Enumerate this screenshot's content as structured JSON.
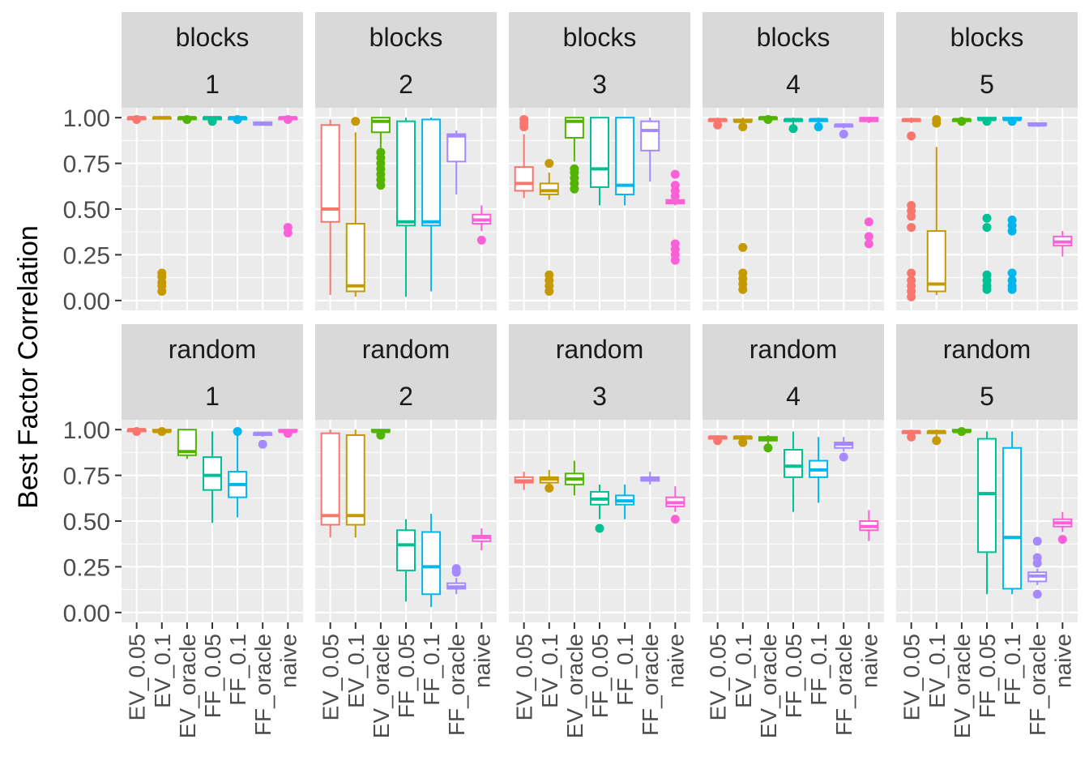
{
  "chart_data": {
    "type": "boxplot",
    "ylabel": "Best Factor Correlation",
    "xlabel": "",
    "ylim": [
      0,
      1
    ],
    "y_ticks": [
      "0.00",
      "0.25",
      "0.50",
      "0.75",
      "1.00"
    ],
    "facet_rows": [
      "blocks",
      "random"
    ],
    "facet_cols": [
      "1",
      "2",
      "3",
      "4",
      "5"
    ],
    "methods": [
      "EV_0.05",
      "EV_0.1",
      "EV_oracle",
      "FF_0.05",
      "FF_0.1",
      "FF_oracle",
      "naive"
    ],
    "method_colors": [
      "#F8766D",
      "#C49A00",
      "#53B400",
      "#00C094",
      "#00B6EB",
      "#A58AFF",
      "#FB61D7"
    ],
    "legend": "none",
    "panels": [
      {
        "row": "blocks",
        "col": "1",
        "boxes": [
          {
            "method": "EV_0.05",
            "q1": 0.99,
            "median": 1.0,
            "q3": 1.0,
            "lo": 0.98,
            "hi": 1.0,
            "outliers": [
              0.99
            ]
          },
          {
            "method": "EV_0.1",
            "q1": 1.0,
            "median": 1.0,
            "q3": 1.0,
            "lo": 1.0,
            "hi": 1.0,
            "outliers": [
              0.05,
              0.08,
              0.1,
              0.13,
              0.15
            ]
          },
          {
            "method": "EV_oracle",
            "q1": 0.99,
            "median": 1.0,
            "q3": 1.0,
            "lo": 0.99,
            "hi": 1.0,
            "outliers": [
              0.99
            ]
          },
          {
            "method": "FF_0.05",
            "q1": 0.99,
            "median": 1.0,
            "q3": 1.0,
            "lo": 0.98,
            "hi": 1.0,
            "outliers": [
              0.98
            ]
          },
          {
            "method": "FF_0.1",
            "q1": 0.99,
            "median": 1.0,
            "q3": 1.0,
            "lo": 0.98,
            "hi": 1.0,
            "outliers": [
              0.99
            ]
          },
          {
            "method": "FF_oracle",
            "q1": 0.96,
            "median": 0.97,
            "q3": 0.975,
            "lo": 0.96,
            "hi": 0.975,
            "outliers": []
          },
          {
            "method": "naive",
            "q1": 0.99,
            "median": 1.0,
            "q3": 1.0,
            "lo": 0.98,
            "hi": 1.0,
            "outliers": [
              0.37,
              0.4,
              0.99
            ]
          }
        ]
      },
      {
        "row": "blocks",
        "col": "2",
        "boxes": [
          {
            "method": "EV_0.05",
            "q1": 0.43,
            "median": 0.5,
            "q3": 0.96,
            "lo": 0.03,
            "hi": 0.99,
            "outliers": []
          },
          {
            "method": "EV_0.1",
            "q1": 0.05,
            "median": 0.08,
            "q3": 0.42,
            "lo": 0.02,
            "hi": 0.92,
            "outliers": [
              0.98
            ]
          },
          {
            "method": "EV_oracle",
            "q1": 0.92,
            "median": 0.98,
            "q3": 1.0,
            "lo": 0.83,
            "hi": 1.0,
            "outliers": [
              0.63,
              0.66,
              0.69,
              0.72,
              0.75,
              0.78,
              0.81
            ]
          },
          {
            "method": "FF_0.05",
            "q1": 0.41,
            "median": 0.43,
            "q3": 0.98,
            "lo": 0.02,
            "hi": 1.0,
            "outliers": []
          },
          {
            "method": "FF_0.1",
            "q1": 0.41,
            "median": 0.43,
            "q3": 0.99,
            "lo": 0.05,
            "hi": 1.0,
            "outliers": []
          },
          {
            "method": "FF_oracle",
            "q1": 0.76,
            "median": 0.9,
            "q3": 0.91,
            "lo": 0.58,
            "hi": 0.93,
            "outliers": []
          },
          {
            "method": "naive",
            "q1": 0.42,
            "median": 0.44,
            "q3": 0.47,
            "lo": 0.38,
            "hi": 0.52,
            "outliers": [
              0.33
            ]
          }
        ]
      },
      {
        "row": "blocks",
        "col": "3",
        "boxes": [
          {
            "method": "EV_0.05",
            "q1": 0.6,
            "median": 0.64,
            "q3": 0.73,
            "lo": 0.56,
            "hi": 0.91,
            "outliers": [
              0.95,
              0.97,
              0.99
            ]
          },
          {
            "method": "EV_0.1",
            "q1": 0.58,
            "median": 0.6,
            "q3": 0.64,
            "lo": 0.55,
            "hi": 0.7,
            "outliers": [
              0.75,
              0.05,
              0.08,
              0.11,
              0.14
            ]
          },
          {
            "method": "EV_oracle",
            "q1": 0.89,
            "median": 0.98,
            "q3": 1.0,
            "lo": 0.76,
            "hi": 1.0,
            "outliers": [
              0.61,
              0.64,
              0.67,
              0.7,
              0.72
            ]
          },
          {
            "method": "FF_0.05",
            "q1": 0.62,
            "median": 0.72,
            "q3": 1.0,
            "lo": 0.52,
            "hi": 1.0,
            "outliers": []
          },
          {
            "method": "FF_0.1",
            "q1": 0.58,
            "median": 0.63,
            "q3": 1.0,
            "lo": 0.52,
            "hi": 1.0,
            "outliers": []
          },
          {
            "method": "FF_oracle",
            "q1": 0.82,
            "median": 0.93,
            "q3": 0.98,
            "lo": 0.65,
            "hi": 1.0,
            "outliers": []
          },
          {
            "method": "naive",
            "q1": 0.53,
            "median": 0.54,
            "q3": 0.55,
            "lo": 0.52,
            "hi": 0.56,
            "outliers": [
              0.22,
              0.25,
              0.28,
              0.31,
              0.57,
              0.6,
              0.63,
              0.69
            ]
          }
        ]
      },
      {
        "row": "blocks",
        "col": "4",
        "boxes": [
          {
            "method": "EV_0.05",
            "q1": 0.98,
            "median": 0.99,
            "q3": 0.99,
            "lo": 0.97,
            "hi": 1.0,
            "outliers": [
              0.96
            ]
          },
          {
            "method": "EV_0.1",
            "q1": 0.98,
            "median": 0.98,
            "q3": 0.99,
            "lo": 0.97,
            "hi": 1.0,
            "outliers": [
              0.95,
              0.06,
              0.09,
              0.12,
              0.15,
              0.29
            ]
          },
          {
            "method": "EV_oracle",
            "q1": 0.99,
            "median": 1.0,
            "q3": 1.0,
            "lo": 0.98,
            "hi": 1.0,
            "outliers": [
              0.99
            ]
          },
          {
            "method": "FF_0.05",
            "q1": 0.98,
            "median": 0.99,
            "q3": 0.99,
            "lo": 0.96,
            "hi": 1.0,
            "outliers": [
              0.94
            ]
          },
          {
            "method": "FF_0.1",
            "q1": 0.98,
            "median": 0.99,
            "q3": 0.99,
            "lo": 0.96,
            "hi": 1.0,
            "outliers": [
              0.95
            ]
          },
          {
            "method": "FF_oracle",
            "q1": 0.95,
            "median": 0.96,
            "q3": 0.96,
            "lo": 0.94,
            "hi": 0.97,
            "outliers": [
              0.91
            ]
          },
          {
            "method": "naive",
            "q1": 0.98,
            "median": 0.99,
            "q3": 1.0,
            "lo": 0.97,
            "hi": 1.0,
            "outliers": [
              0.31,
              0.35,
              0.43
            ]
          }
        ]
      },
      {
        "row": "blocks",
        "col": "5",
        "boxes": [
          {
            "method": "EV_0.05",
            "q1": 0.98,
            "median": 0.99,
            "q3": 0.99,
            "lo": 0.97,
            "hi": 1.0,
            "outliers": [
              0.9,
              0.52,
              0.49,
              0.46,
              0.4,
              0.15,
              0.11,
              0.08,
              0.05,
              0.02
            ]
          },
          {
            "method": "EV_0.1",
            "q1": 0.05,
            "median": 0.09,
            "q3": 0.38,
            "lo": 0.03,
            "hi": 0.84,
            "outliers": [
              0.97,
              0.99
            ]
          },
          {
            "method": "EV_oracle",
            "q1": 0.98,
            "median": 0.99,
            "q3": 0.99,
            "lo": 0.97,
            "hi": 1.0,
            "outliers": [
              0.98
            ]
          },
          {
            "method": "FF_0.05",
            "q1": 0.99,
            "median": 0.99,
            "q3": 1.0,
            "lo": 0.98,
            "hi": 1.0,
            "outliers": [
              0.98,
              0.45,
              0.4,
              0.14,
              0.11,
              0.08,
              0.06
            ]
          },
          {
            "method": "FF_0.1",
            "q1": 0.99,
            "median": 0.99,
            "q3": 1.0,
            "lo": 0.98,
            "hi": 1.0,
            "outliers": [
              0.98,
              0.44,
              0.41,
              0.38,
              0.15,
              0.11,
              0.08,
              0.06
            ]
          },
          {
            "method": "FF_oracle",
            "q1": 0.96,
            "median": 0.96,
            "q3": 0.97,
            "lo": 0.95,
            "hi": 0.97,
            "outliers": []
          },
          {
            "method": "naive",
            "q1": 0.3,
            "median": 0.32,
            "q3": 0.35,
            "lo": 0.24,
            "hi": 0.38,
            "outliers": []
          }
        ]
      },
      {
        "row": "random",
        "col": "1",
        "boxes": [
          {
            "method": "EV_0.05",
            "q1": 0.99,
            "median": 1.0,
            "q3": 1.0,
            "lo": 0.98,
            "hi": 1.0,
            "outliers": [
              0.99
            ]
          },
          {
            "method": "EV_0.1",
            "q1": 0.99,
            "median": 0.99,
            "q3": 1.0,
            "lo": 0.98,
            "hi": 1.0,
            "outliers": [
              0.99
            ]
          },
          {
            "method": "EV_oracle",
            "q1": 0.86,
            "median": 0.88,
            "q3": 1.0,
            "lo": 0.84,
            "hi": 1.0,
            "outliers": []
          },
          {
            "method": "FF_0.05",
            "q1": 0.67,
            "median": 0.75,
            "q3": 0.85,
            "lo": 0.49,
            "hi": 0.99,
            "outliers": []
          },
          {
            "method": "FF_0.1",
            "q1": 0.63,
            "median": 0.7,
            "q3": 0.77,
            "lo": 0.52,
            "hi": 0.97,
            "outliers": [
              0.99
            ]
          },
          {
            "method": "FF_oracle",
            "q1": 0.97,
            "median": 0.98,
            "q3": 0.98,
            "lo": 0.96,
            "hi": 0.99,
            "outliers": [
              0.92
            ]
          },
          {
            "method": "naive",
            "q1": 0.99,
            "median": 0.99,
            "q3": 1.0,
            "lo": 0.98,
            "hi": 1.0,
            "outliers": [
              0.98
            ]
          }
        ]
      },
      {
        "row": "random",
        "col": "2",
        "boxes": [
          {
            "method": "EV_0.05",
            "q1": 0.48,
            "median": 0.53,
            "q3": 0.98,
            "lo": 0.41,
            "hi": 1.0,
            "outliers": []
          },
          {
            "method": "EV_0.1",
            "q1": 0.48,
            "median": 0.53,
            "q3": 0.97,
            "lo": 0.41,
            "hi": 1.0,
            "outliers": []
          },
          {
            "method": "EV_oracle",
            "q1": 0.99,
            "median": 0.99,
            "q3": 1.0,
            "lo": 0.98,
            "hi": 1.0,
            "outliers": [
              0.97
            ]
          },
          {
            "method": "FF_0.05",
            "q1": 0.23,
            "median": 0.37,
            "q3": 0.45,
            "lo": 0.06,
            "hi": 0.51,
            "outliers": []
          },
          {
            "method": "FF_0.1",
            "q1": 0.1,
            "median": 0.25,
            "q3": 0.44,
            "lo": 0.03,
            "hi": 0.54,
            "outliers": []
          },
          {
            "method": "FF_oracle",
            "q1": 0.13,
            "median": 0.14,
            "q3": 0.16,
            "lo": 0.1,
            "hi": 0.19,
            "outliers": [
              0.22,
              0.24
            ]
          },
          {
            "method": "naive",
            "q1": 0.39,
            "median": 0.41,
            "q3": 0.42,
            "lo": 0.34,
            "hi": 0.46,
            "outliers": []
          }
        ]
      },
      {
        "row": "random",
        "col": "3",
        "boxes": [
          {
            "method": "EV_0.05",
            "q1": 0.71,
            "median": 0.72,
            "q3": 0.74,
            "lo": 0.67,
            "hi": 0.77,
            "outliers": []
          },
          {
            "method": "EV_0.1",
            "q1": 0.71,
            "median": 0.73,
            "q3": 0.74,
            "lo": 0.7,
            "hi": 0.78,
            "outliers": [
              0.68
            ]
          },
          {
            "method": "EV_oracle",
            "q1": 0.7,
            "median": 0.73,
            "q3": 0.76,
            "lo": 0.64,
            "hi": 0.83,
            "outliers": []
          },
          {
            "method": "FF_0.05",
            "q1": 0.59,
            "median": 0.62,
            "q3": 0.66,
            "lo": 0.51,
            "hi": 0.7,
            "outliers": [
              0.46
            ]
          },
          {
            "method": "FF_0.1",
            "q1": 0.59,
            "median": 0.61,
            "q3": 0.64,
            "lo": 0.51,
            "hi": 0.7,
            "outliers": []
          },
          {
            "method": "FF_oracle",
            "q1": 0.72,
            "median": 0.73,
            "q3": 0.74,
            "lo": 0.7,
            "hi": 0.77,
            "outliers": []
          },
          {
            "method": "naive",
            "q1": 0.58,
            "median": 0.6,
            "q3": 0.63,
            "lo": 0.55,
            "hi": 0.69,
            "outliers": [
              0.51
            ]
          }
        ]
      },
      {
        "row": "random",
        "col": "4",
        "boxes": [
          {
            "method": "EV_0.05",
            "q1": 0.95,
            "median": 0.96,
            "q3": 0.96,
            "lo": 0.94,
            "hi": 0.97,
            "outliers": [
              0.94
            ]
          },
          {
            "method": "EV_0.1",
            "q1": 0.95,
            "median": 0.96,
            "q3": 0.96,
            "lo": 0.94,
            "hi": 0.97,
            "outliers": [
              0.93
            ]
          },
          {
            "method": "EV_oracle",
            "q1": 0.94,
            "median": 0.95,
            "q3": 0.96,
            "lo": 0.92,
            "hi": 0.97,
            "outliers": [
              0.9
            ]
          },
          {
            "method": "FF_0.05",
            "q1": 0.74,
            "median": 0.8,
            "q3": 0.89,
            "lo": 0.55,
            "hi": 0.99,
            "outliers": []
          },
          {
            "method": "FF_0.1",
            "q1": 0.74,
            "median": 0.78,
            "q3": 0.83,
            "lo": 0.6,
            "hi": 0.96,
            "outliers": []
          },
          {
            "method": "FF_oracle",
            "q1": 0.9,
            "median": 0.92,
            "q3": 0.93,
            "lo": 0.88,
            "hi": 0.96,
            "outliers": [
              0.85
            ]
          },
          {
            "method": "naive",
            "q1": 0.45,
            "median": 0.47,
            "q3": 0.5,
            "lo": 0.39,
            "hi": 0.56,
            "outliers": []
          }
        ]
      },
      {
        "row": "random",
        "col": "5",
        "boxes": [
          {
            "method": "EV_0.05",
            "q1": 0.98,
            "median": 0.99,
            "q3": 0.99,
            "lo": 0.97,
            "hi": 1.0,
            "outliers": [
              0.96
            ]
          },
          {
            "method": "EV_0.1",
            "q1": 0.98,
            "median": 0.99,
            "q3": 0.99,
            "lo": 0.96,
            "hi": 1.0,
            "outliers": [
              0.94
            ]
          },
          {
            "method": "EV_oracle",
            "q1": 0.99,
            "median": 0.99,
            "q3": 1.0,
            "lo": 0.98,
            "hi": 1.0,
            "outliers": [
              0.99
            ]
          },
          {
            "method": "FF_0.05",
            "q1": 0.33,
            "median": 0.65,
            "q3": 0.95,
            "lo": 0.1,
            "hi": 0.99,
            "outliers": []
          },
          {
            "method": "FF_0.1",
            "q1": 0.13,
            "median": 0.41,
            "q3": 0.9,
            "lo": 0.1,
            "hi": 0.99,
            "outliers": []
          },
          {
            "method": "FF_oracle",
            "q1": 0.17,
            "median": 0.2,
            "q3": 0.22,
            "lo": 0.15,
            "hi": 0.24,
            "outliers": [
              0.1,
              0.27,
              0.3,
              0.39
            ]
          },
          {
            "method": "naive",
            "q1": 0.47,
            "median": 0.49,
            "q3": 0.51,
            "lo": 0.44,
            "hi": 0.55,
            "outliers": [
              0.4
            ]
          }
        ]
      }
    ]
  }
}
